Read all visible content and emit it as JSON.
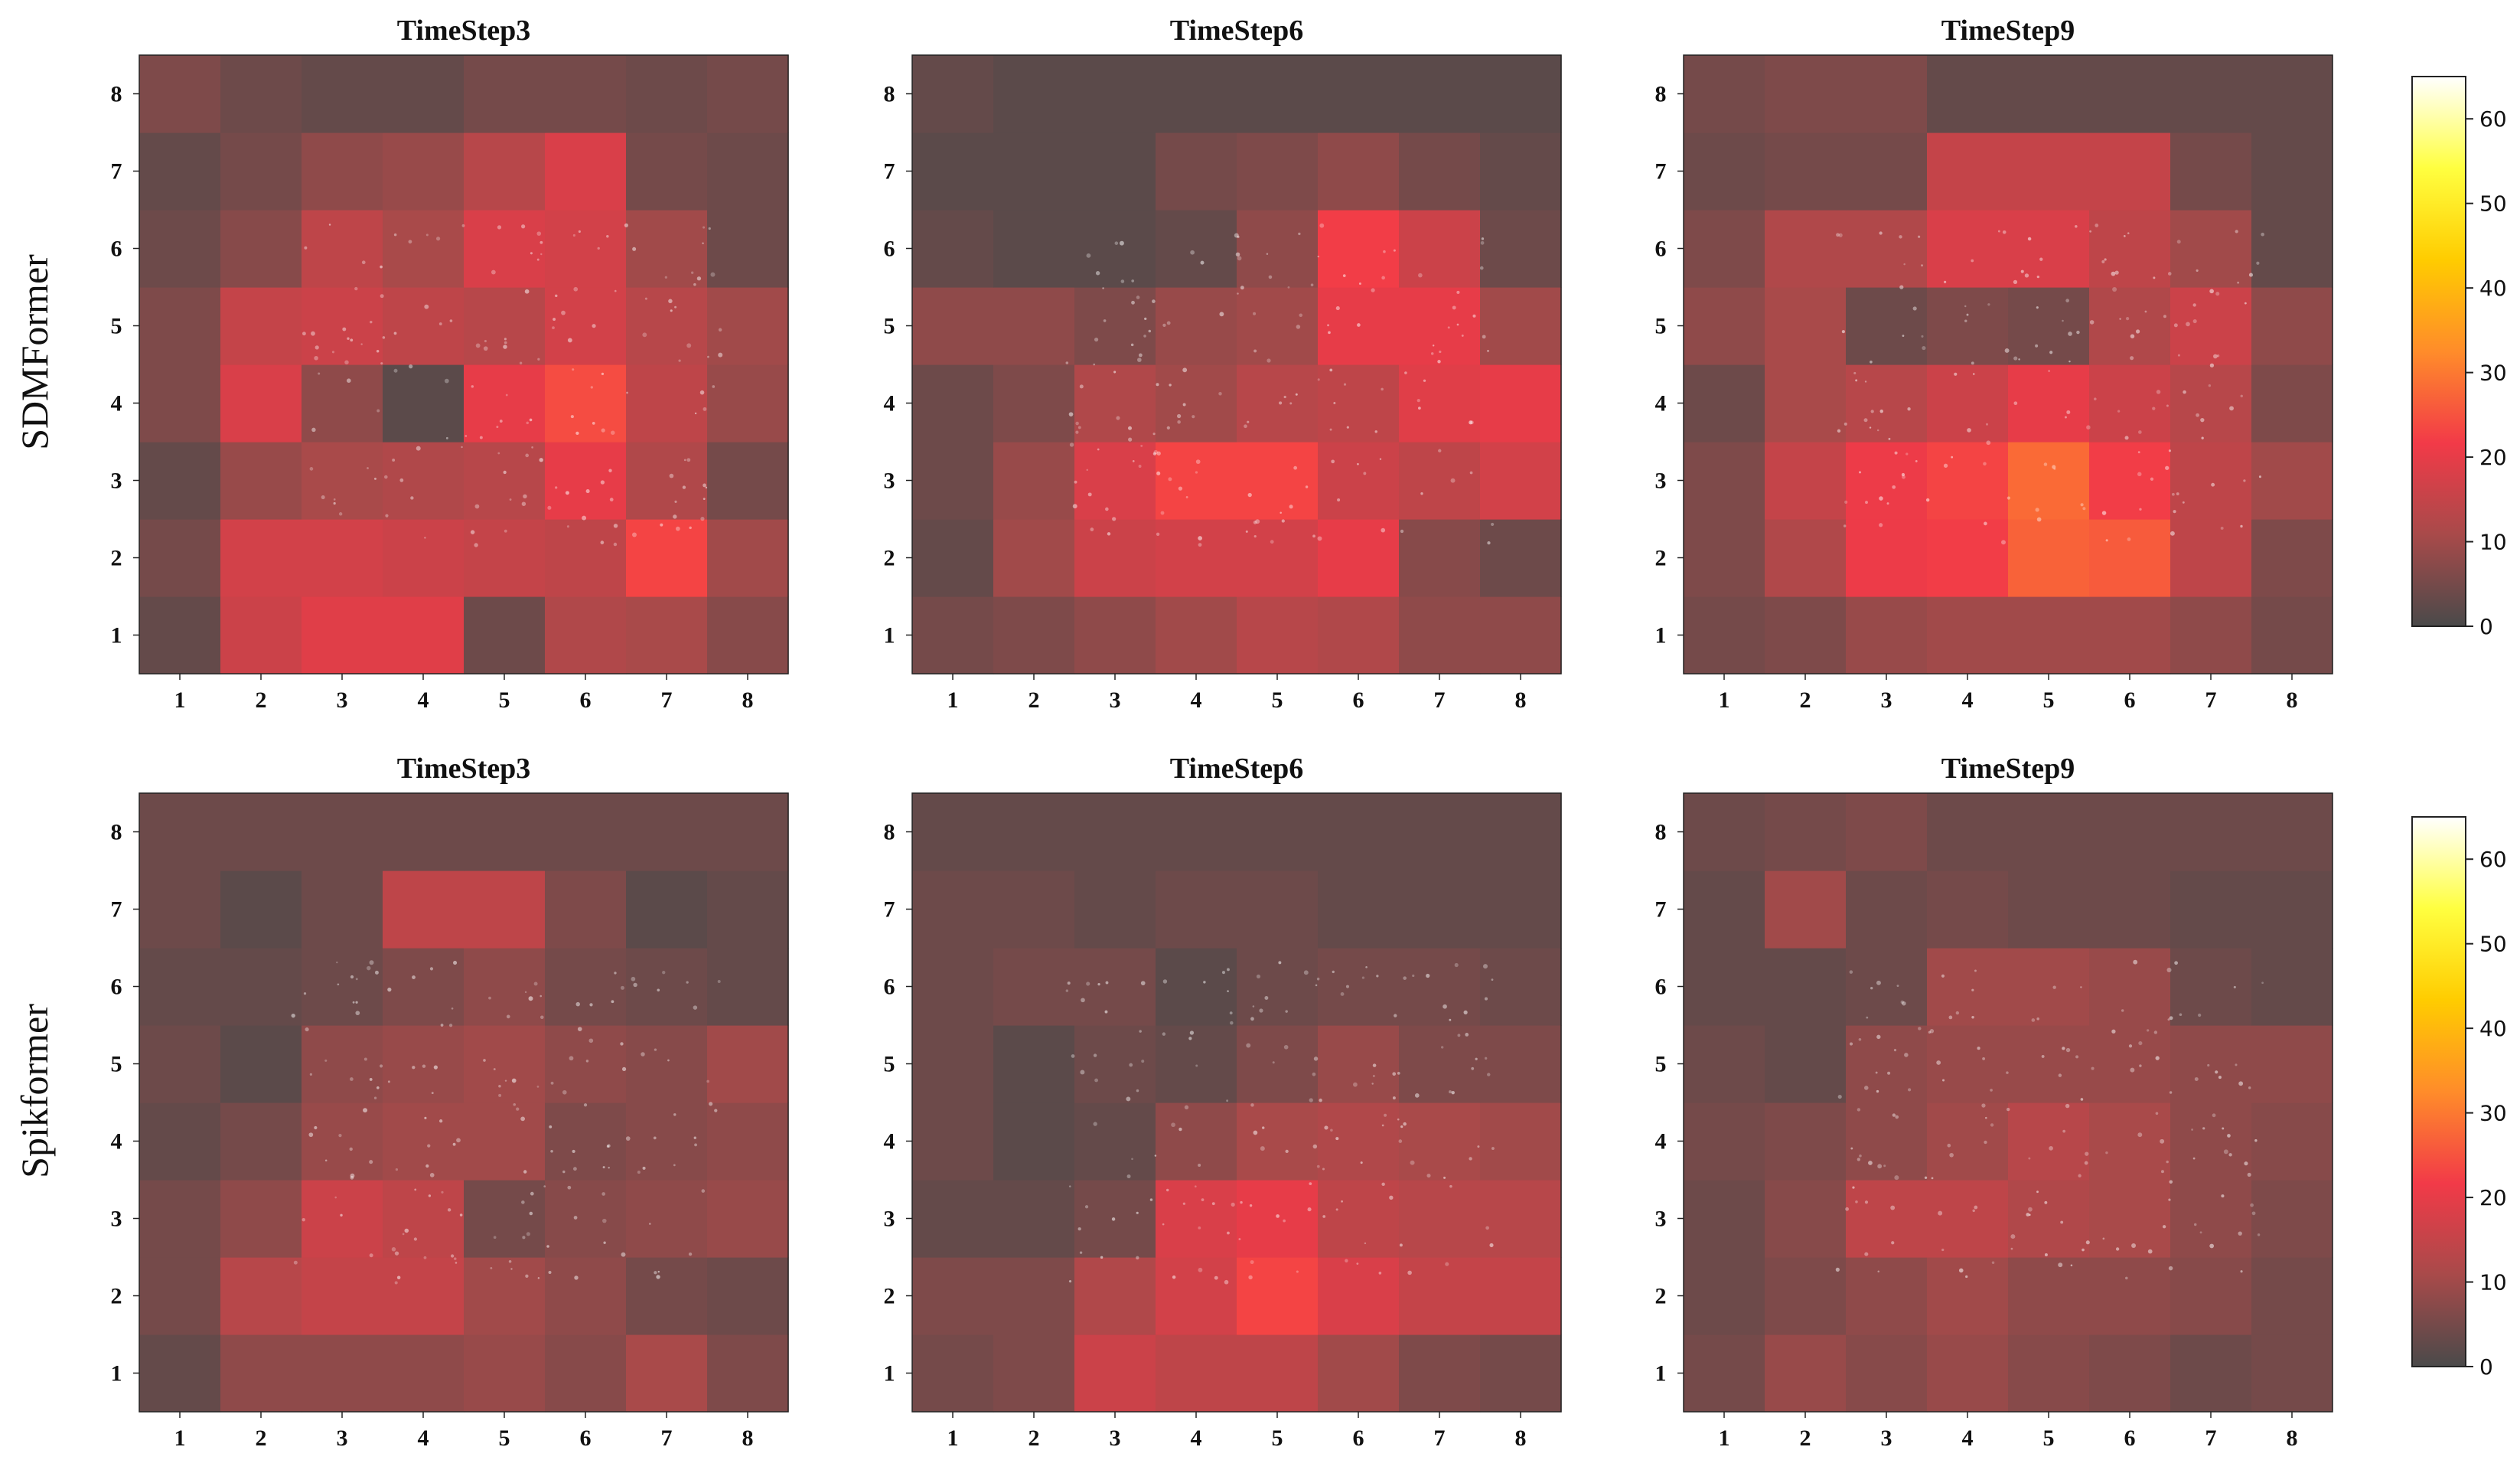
{
  "row_labels": [
    "SDMFormer",
    "Spikformer"
  ],
  "colorbar": {
    "min": 0,
    "max": 65,
    "ticks": [
      0,
      10,
      20,
      30,
      40,
      50,
      60
    ],
    "stops": [
      "#4a4a4a",
      "#a84a4a",
      "#f23a48",
      "#ff8c2a",
      "#ffcc00",
      "#ffff40",
      "#ffffff"
    ]
  },
  "chart_data": [
    {
      "type": "heatmap",
      "row": "SDMFormer",
      "title": "TimeStep3",
      "x": [
        1,
        2,
        3,
        4,
        5,
        6,
        7,
        8
      ],
      "y": [
        1,
        2,
        3,
        4,
        5,
        6,
        7,
        8
      ],
      "values": [
        [
          3,
          16,
          19,
          19,
          4,
          12,
          11,
          7
        ],
        [
          5,
          17,
          17,
          16,
          15,
          14,
          23,
          10
        ],
        [
          3,
          9,
          11,
          12,
          13,
          20,
          12,
          5
        ],
        [
          6,
          18,
          8,
          2,
          20,
          24,
          14,
          9
        ],
        [
          6,
          15,
          16,
          14,
          13,
          17,
          13,
          10
        ],
        [
          4,
          7,
          14,
          11,
          18,
          17,
          10,
          4
        ],
        [
          3,
          5,
          8,
          9,
          13,
          18,
          5,
          4
        ],
        [
          6,
          4,
          3,
          3,
          5,
          5,
          4,
          5
        ]
      ]
    },
    {
      "type": "heatmap",
      "row": "SDMFormer",
      "title": "TimeStep6",
      "x": [
        1,
        2,
        3,
        4,
        5,
        6,
        7,
        8
      ],
      "y": [
        1,
        2,
        3,
        4,
        5,
        6,
        7,
        8
      ],
      "values": [
        [
          5,
          6,
          8,
          10,
          13,
          12,
          8,
          8
        ],
        [
          3,
          10,
          16,
          17,
          17,
          20,
          7,
          4
        ],
        [
          4,
          9,
          18,
          23,
          23,
          16,
          14,
          17
        ],
        [
          4,
          6,
          12,
          10,
          13,
          14,
          19,
          20
        ],
        [
          8,
          8,
          6,
          9,
          10,
          20,
          20,
          10
        ],
        [
          3,
          2,
          2,
          3,
          8,
          22,
          16,
          4
        ],
        [
          2,
          2,
          2,
          5,
          6,
          8,
          5,
          3
        ],
        [
          3,
          2,
          2,
          2,
          2,
          2,
          2,
          2
        ]
      ]
    },
    {
      "type": "heatmap",
      "row": "SDMFormer",
      "title": "TimeStep9",
      "x": [
        1,
        2,
        3,
        4,
        5,
        6,
        7,
        8
      ],
      "y": [
        1,
        2,
        3,
        4,
        5,
        6,
        7,
        8
      ],
      "values": [
        [
          5,
          6,
          9,
          10,
          10,
          10,
          8,
          5
        ],
        [
          6,
          12,
          21,
          22,
          27,
          26,
          14,
          6
        ],
        [
          6,
          15,
          21,
          23,
          28,
          22,
          14,
          10
        ],
        [
          4,
          11,
          13,
          16,
          20,
          16,
          13,
          6
        ],
        [
          8,
          11,
          4,
          6,
          5,
          12,
          16,
          8
        ],
        [
          6,
          12,
          12,
          18,
          18,
          14,
          10,
          3
        ],
        [
          4,
          5,
          5,
          15,
          15,
          15,
          5,
          3
        ],
        [
          5,
          6,
          6,
          3,
          3,
          3,
          3,
          3
        ]
      ]
    },
    {
      "type": "heatmap",
      "row": "Spikformer",
      "title": "TimeStep3",
      "x": [
        1,
        2,
        3,
        4,
        5,
        6,
        7,
        8
      ],
      "y": [
        1,
        2,
        3,
        4,
        5,
        6,
        7,
        8
      ],
      "values": [
        [
          3,
          8,
          8,
          8,
          9,
          7,
          11,
          6
        ],
        [
          5,
          13,
          15,
          15,
          10,
          8,
          5,
          4
        ],
        [
          5,
          8,
          16,
          14,
          5,
          7,
          8,
          9
        ],
        [
          3,
          5,
          9,
          10,
          10,
          6,
          7,
          8
        ],
        [
          4,
          2,
          8,
          9,
          10,
          8,
          7,
          10
        ],
        [
          3,
          3,
          4,
          6,
          8,
          5,
          4,
          3
        ],
        [
          4,
          2,
          4,
          14,
          14,
          6,
          2,
          3
        ],
        [
          4,
          4,
          4,
          4,
          4,
          4,
          4,
          4
        ]
      ]
    },
    {
      "type": "heatmap",
      "row": "Spikformer",
      "title": "TimeStep6",
      "x": [
        1,
        2,
        3,
        4,
        5,
        6,
        7,
        8
      ],
      "y": [
        1,
        2,
        3,
        4,
        5,
        6,
        7,
        8
      ],
      "values": [
        [
          5,
          6,
          16,
          14,
          14,
          10,
          6,
          5
        ],
        [
          6,
          6,
          12,
          17,
          23,
          18,
          15,
          15
        ],
        [
          3,
          3,
          5,
          18,
          20,
          14,
          13,
          13
        ],
        [
          4,
          2,
          3,
          8,
          11,
          12,
          11,
          10
        ],
        [
          4,
          2,
          4,
          3,
          6,
          9,
          6,
          6
        ],
        [
          4,
          5,
          5,
          2,
          4,
          5,
          5,
          4
        ],
        [
          4,
          4,
          3,
          4,
          4,
          3,
          3,
          3
        ],
        [
          3,
          3,
          3,
          3,
          3,
          3,
          3,
          3
        ]
      ]
    },
    {
      "type": "heatmap",
      "row": "Spikformer",
      "title": "TimeStep9",
      "x": [
        1,
        2,
        3,
        4,
        5,
        6,
        7,
        8
      ],
      "y": [
        1,
        2,
        3,
        4,
        5,
        6,
        7,
        8
      ],
      "values": [
        [
          5,
          9,
          7,
          9,
          7,
          6,
          4,
          5
        ],
        [
          4,
          6,
          8,
          10,
          8,
          8,
          7,
          5
        ],
        [
          4,
          7,
          14,
          14,
          12,
          11,
          8,
          6
        ],
        [
          5,
          6,
          8,
          10,
          13,
          11,
          8,
          7
        ],
        [
          4,
          3,
          8,
          9,
          9,
          9,
          8,
          8
        ],
        [
          3,
          3,
          4,
          10,
          10,
          9,
          4,
          3
        ],
        [
          3,
          10,
          4,
          5,
          4,
          4,
          3,
          3
        ],
        [
          4,
          5,
          6,
          4,
          4,
          4,
          4,
          4
        ]
      ]
    }
  ]
}
